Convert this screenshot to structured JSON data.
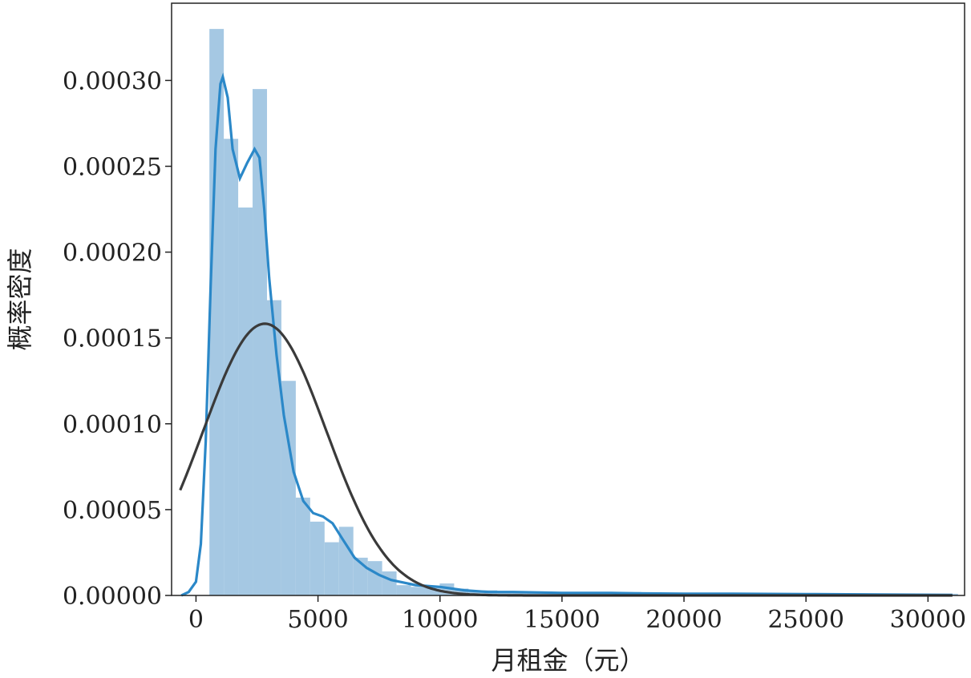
{
  "chart_data": {
    "type": "bar",
    "xlabel": "月租金（元）",
    "ylabel": "概率密度",
    "xlim": [
      -1000,
      31500
    ],
    "ylim": [
      0,
      0.000345
    ],
    "x_ticks": [
      0,
      5000,
      10000,
      15000,
      20000,
      25000,
      30000
    ],
    "x_tick_labels": [
      "0",
      "5000",
      "10000",
      "15000",
      "20000",
      "25000",
      "30000"
    ],
    "y_ticks": [
      0,
      5e-05,
      0.0001,
      0.00015,
      0.0002,
      0.00025,
      0.0003
    ],
    "y_tick_labels": [
      "0.00000",
      "0.00005",
      "0.00010",
      "0.00015",
      "0.00020",
      "0.00025",
      "0.00030"
    ],
    "grid": false,
    "histogram": {
      "bin_width": 590,
      "bins": [
        [
          550,
          0.00033
        ],
        [
          1140,
          0.000266
        ],
        [
          1730,
          0.000226
        ],
        [
          2320,
          0.000295
        ],
        [
          2910,
          0.000172
        ],
        [
          3500,
          0.000125
        ],
        [
          4090,
          5.7e-05
        ],
        [
          4680,
          4.3e-05
        ],
        [
          5270,
          3.1e-05
        ],
        [
          5860,
          4e-05
        ],
        [
          6450,
          2.2e-05
        ],
        [
          7040,
          2e-05
        ],
        [
          7630,
          1.4e-05
        ],
        [
          8220,
          6e-06
        ],
        [
          8810,
          5e-06
        ],
        [
          9400,
          5e-06
        ],
        [
          9990,
          7e-06
        ],
        [
          10580,
          4e-06
        ],
        [
          11170,
          3e-06
        ],
        [
          11760,
          3e-06
        ],
        [
          12350,
          2e-06
        ],
        [
          12940,
          2e-06
        ],
        [
          13530,
          2e-06
        ],
        [
          14120,
          2e-06
        ],
        [
          14710,
          2e-06
        ],
        [
          15300,
          2e-06
        ],
        [
          15890,
          2e-06
        ],
        [
          16480,
          2e-06
        ],
        [
          17070,
          2e-06
        ],
        [
          17660,
          2e-06
        ],
        [
          18250,
          1e-06
        ],
        [
          18840,
          1e-06
        ],
        [
          19430,
          1e-06
        ],
        [
          20020,
          1e-06
        ],
        [
          20610,
          1e-06
        ],
        [
          21200,
          1e-06
        ],
        [
          21790,
          1e-06
        ],
        [
          22380,
          1e-06
        ],
        [
          22970,
          1e-06
        ],
        [
          23560,
          1e-06
        ],
        [
          24150,
          1e-06
        ],
        [
          24740,
          1e-06
        ],
        [
          25330,
          1e-06
        ],
        [
          25920,
          1e-06
        ],
        [
          26510,
          1e-06
        ],
        [
          27100,
          1e-06
        ],
        [
          27690,
          1e-06
        ],
        [
          28280,
          1e-06
        ],
        [
          28870,
          1e-06
        ],
        [
          29460,
          1e-06
        ],
        [
          30050,
          1e-06
        ],
        [
          30640,
          1e-06
        ]
      ],
      "color": "#a5c8e3"
    },
    "kde": {
      "color": "#2b88c8",
      "points": [
        [
          -600,
          0.0
        ],
        [
          -300,
          2e-06
        ],
        [
          0,
          8e-06
        ],
        [
          200,
          3e-05
        ],
        [
          400,
          9e-05
        ],
        [
          600,
          0.00018
        ],
        [
          800,
          0.00026
        ],
        [
          1000,
          0.000298
        ],
        [
          1100,
          0.000302
        ],
        [
          1300,
          0.00029
        ],
        [
          1500,
          0.00026
        ],
        [
          1800,
          0.000243
        ],
        [
          2100,
          0.000252
        ],
        [
          2400,
          0.00026
        ],
        [
          2600,
          0.000255
        ],
        [
          2800,
          0.000225
        ],
        [
          3000,
          0.000185
        ],
        [
          3300,
          0.00014
        ],
        [
          3600,
          0.000105
        ],
        [
          4000,
          7.2e-05
        ],
        [
          4400,
          5.5e-05
        ],
        [
          4800,
          4.8e-05
        ],
        [
          5200,
          4.6e-05
        ],
        [
          5600,
          4.2e-05
        ],
        [
          6000,
          3.3e-05
        ],
        [
          6500,
          2.2e-05
        ],
        [
          7000,
          1.6e-05
        ],
        [
          7500,
          1.2e-05
        ],
        [
          8000,
          9e-06
        ],
        [
          9000,
          6e-06
        ],
        [
          10000,
          5e-06
        ],
        [
          11000,
          3e-06
        ],
        [
          12000,
          2e-06
        ],
        [
          13000,
          2e-06
        ],
        [
          15000,
          1.5e-06
        ],
        [
          17000,
          1.5e-06
        ],
        [
          18000,
          1.2e-06
        ],
        [
          20000,
          1e-06
        ],
        [
          22000,
          1e-06
        ],
        [
          25000,
          8e-07
        ],
        [
          28000,
          5e-07
        ],
        [
          31000,
          3e-07
        ]
      ]
    },
    "normal_fit": {
      "color": "#3a3a3a",
      "mean": 2820,
      "std": 2520,
      "x_range": [
        -650,
        31000
      ]
    }
  }
}
